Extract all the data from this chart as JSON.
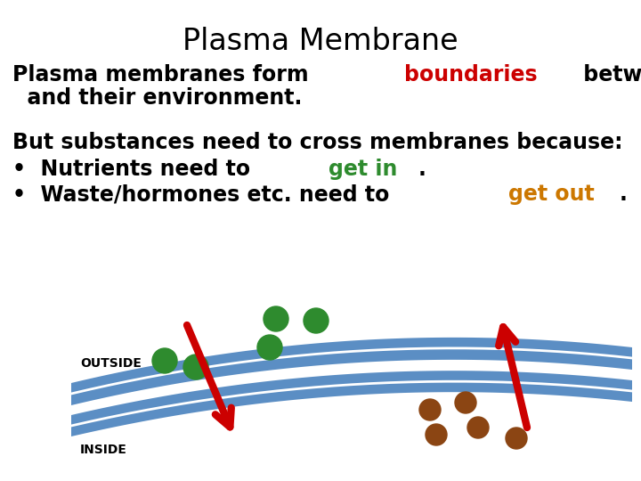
{
  "title": "Plasma Membrane",
  "title_fontsize": 24,
  "bg_color": "#ffffff",
  "text_color": "#000000",
  "red_color": "#cc0000",
  "green_color": "#2e8b2e",
  "orange_color": "#cc7700",
  "body_fontsize": 17,
  "label_fontsize": 10,
  "membrane_color": "#5b8ec4",
  "arrow_color": "#cc0000",
  "green_dot_color": "#2e8b2e",
  "brown_dot_color": "#8B4513",
  "label_outside": "OUTSIDE",
  "label_inside": "INSIDE"
}
